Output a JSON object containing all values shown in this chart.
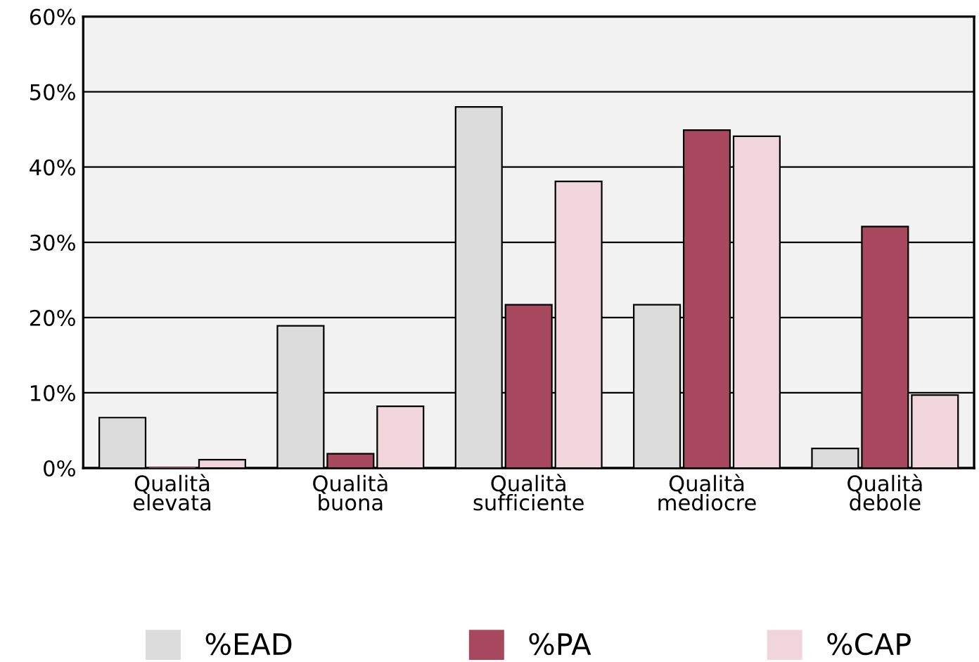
{
  "chart_data": {
    "type": "bar",
    "categories": [
      "Qualità\nelevata",
      "Qualità\nbuona",
      "Qualità\nsufficiente",
      "Qualità\nmediocre",
      "Qualità\ndebole"
    ],
    "series": [
      {
        "name": "%EAD",
        "color": "#dcdcdc",
        "values": [
          6.7,
          18.9,
          48.0,
          21.7,
          2.6
        ]
      },
      {
        "name": "%PA",
        "color": "#a8485e",
        "values": [
          0,
          1.9,
          21.7,
          44.9,
          32.1
        ]
      },
      {
        "name": "%CAP",
        "color": "#f0d6dc",
        "values": [
          1.1,
          8.2,
          38.1,
          44.1,
          9.7
        ]
      }
    ],
    "ylim": [
      0,
      60
    ],
    "yticks": [
      {
        "value": 0,
        "label": "0%"
      },
      {
        "value": 10,
        "label": "10%"
      },
      {
        "value": 20,
        "label": "20%"
      },
      {
        "value": 30,
        "label": "30%"
      },
      {
        "value": 40,
        "label": "40%"
      },
      {
        "value": 50,
        "label": "50%"
      },
      {
        "value": 60,
        "label": "60%"
      }
    ],
    "grid": "y",
    "legend": "bottom"
  }
}
